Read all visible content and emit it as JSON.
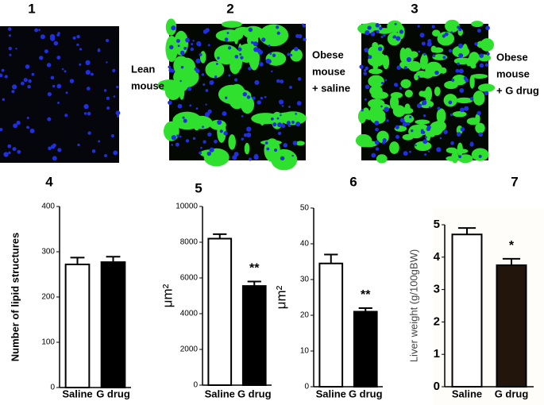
{
  "images": [
    {
      "number": "1",
      "caption": [
        "Lean",
        "mouse"
      ]
    },
    {
      "number": "2",
      "caption": [
        "Obese",
        "mouse",
        "+ saline"
      ]
    },
    {
      "number": "3",
      "caption": [
        "Obese",
        "mouse",
        "+ G drug"
      ]
    }
  ],
  "chart_data": [
    {
      "type": "bar",
      "panel": "4",
      "y_label": "Number of lipid structures",
      "categories": [
        "Saline",
        "G drug"
      ],
      "values": [
        272,
        277
      ],
      "errors": [
        15,
        12
      ],
      "colors": [
        "#ffffff",
        "#000000"
      ],
      "ylim": [
        0,
        400
      ],
      "yticks": [
        0,
        100,
        200,
        300,
        400
      ]
    },
    {
      "type": "bar",
      "panel": "5",
      "y_label": "μm²",
      "categories": [
        "Saline",
        "G drug"
      ],
      "values": [
        8200,
        5550
      ],
      "errors": [
        250,
        250
      ],
      "colors": [
        "#ffffff",
        "#000000"
      ],
      "ylim": [
        0,
        10000
      ],
      "yticks": [
        0,
        2000,
        4000,
        6000,
        8000,
        10000
      ],
      "annotations": [
        null,
        "**"
      ]
    },
    {
      "type": "bar",
      "panel": "6",
      "y_label": "μm²",
      "categories": [
        "Saline",
        "G drug"
      ],
      "values": [
        34.5,
        21
      ],
      "errors": [
        2.5,
        1
      ],
      "colors": [
        "#ffffff",
        "#000000"
      ],
      "ylim": [
        0,
        50
      ],
      "yticks": [
        0,
        10,
        20,
        30,
        40,
        50
      ],
      "annotations": [
        null,
        "**"
      ]
    },
    {
      "type": "bar",
      "panel": "7",
      "y_label": "Liver weight (g/100gBW)",
      "categories": [
        "Saline",
        "G drug"
      ],
      "values": [
        4.7,
        3.75
      ],
      "errors": [
        0.2,
        0.2
      ],
      "colors": [
        "#ffffff",
        "#22150c"
      ],
      "ylim": [
        0,
        5
      ],
      "yticks": [
        0,
        1,
        2,
        3,
        4,
        5
      ],
      "annotations": [
        null,
        "*"
      ]
    }
  ]
}
